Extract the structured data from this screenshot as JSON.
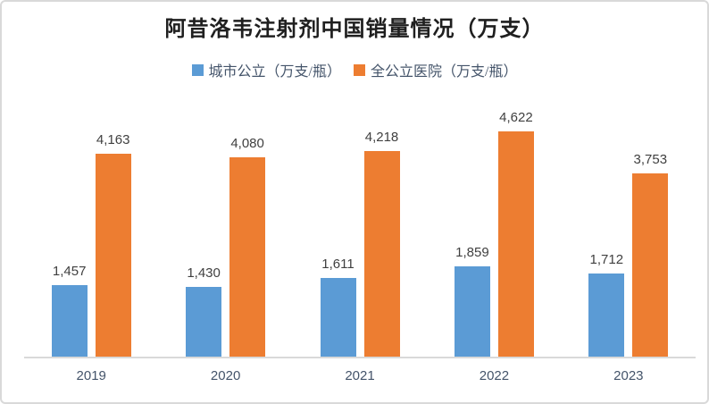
{
  "chart_data": {
    "type": "bar",
    "title": "阿昔洛韦注射剂中国销量情况（万支）",
    "categories": [
      "2019",
      "2020",
      "2021",
      "2022",
      "2023"
    ],
    "series": [
      {
        "name": "城市公立（万支/瓶）",
        "color": "#5B9BD5",
        "values": [
          1457,
          1430,
          1611,
          1859,
          1712
        ],
        "labels": [
          "1,457",
          "1,430",
          "1,611",
          "1,859",
          "1,712"
        ]
      },
      {
        "name": "全公立医院（万支/瓶）",
        "color": "#ED7D31",
        "values": [
          4163,
          4080,
          4218,
          4622,
          3753
        ],
        "labels": [
          "4,163",
          "4,080",
          "4,218",
          "4,622",
          "3,753"
        ]
      }
    ],
    "xlabel": "",
    "ylabel": "",
    "ylim": [
      0,
      5000
    ],
    "grid": false,
    "y_axis_visible": false,
    "legend_position": "top",
    "data_labels": "outside-end",
    "axis_line_color": "#D9D9D9",
    "frame_border_color": "#D9D9D9"
  }
}
